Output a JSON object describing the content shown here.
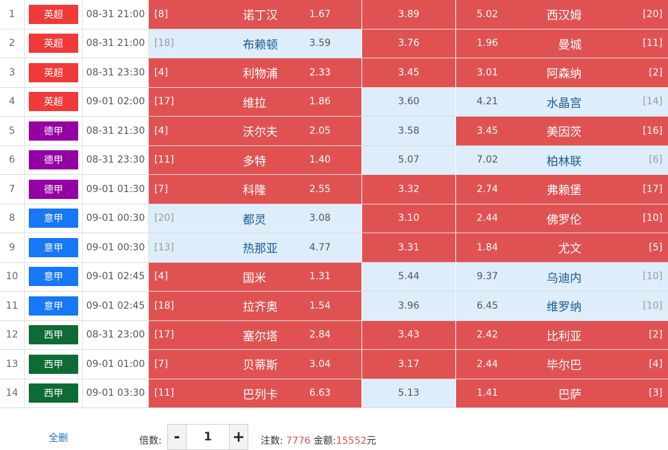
{
  "colors": {
    "selected": "#e05252",
    "unselected": "#ddeefa"
  },
  "leagues": {
    "英超": "#f03a3a",
    "德甲": "#9400a3",
    "意甲": "#1677f7",
    "西甲": "#0f6b35"
  },
  "matches": [
    {
      "index": "1",
      "league": "英超",
      "time": "08-31 21:00",
      "home_rank": "[8]",
      "home": "诺丁汉",
      "home_odd": "1.67",
      "draw_odd": "3.89",
      "away_odd": "5.02",
      "away": "西汉姆",
      "away_rank": "[20]",
      "sel": [
        true,
        true,
        true
      ]
    },
    {
      "index": "2",
      "league": "英超",
      "time": "08-31 21:00",
      "home_rank": "[18]",
      "home": "布赖顿",
      "home_odd": "3.59",
      "draw_odd": "3.76",
      "away_odd": "1.96",
      "away": "曼城",
      "away_rank": "[11]",
      "sel": [
        false,
        true,
        true
      ]
    },
    {
      "index": "3",
      "league": "英超",
      "time": "08-31 23:30",
      "home_rank": "[4]",
      "home": "利物浦",
      "home_odd": "2.33",
      "draw_odd": "3.45",
      "away_odd": "3.01",
      "away": "阿森纳",
      "away_rank": "[2]",
      "sel": [
        true,
        true,
        true
      ]
    },
    {
      "index": "4",
      "league": "英超",
      "time": "09-01 02:00",
      "home_rank": "[17]",
      "home": "维拉",
      "home_odd": "1.86",
      "draw_odd": "3.60",
      "away_odd": "4.21",
      "away": "水晶宫",
      "away_rank": "[14]",
      "sel": [
        true,
        false,
        false
      ]
    },
    {
      "index": "5",
      "league": "德甲",
      "time": "08-31 21:30",
      "home_rank": "[4]",
      "home": "沃尔夫",
      "home_odd": "2.05",
      "draw_odd": "3.58",
      "away_odd": "3.45",
      "away": "美因茨",
      "away_rank": "[16]",
      "sel": [
        true,
        false,
        true
      ]
    },
    {
      "index": "6",
      "league": "德甲",
      "time": "08-31 23:30",
      "home_rank": "[11]",
      "home": "多特",
      "home_odd": "1.40",
      "draw_odd": "5.07",
      "away_odd": "7.02",
      "away": "柏林联",
      "away_rank": "[6]",
      "sel": [
        true,
        false,
        false
      ]
    },
    {
      "index": "7",
      "league": "德甲",
      "time": "09-01 01:30",
      "home_rank": "[7]",
      "home": "科隆",
      "home_odd": "2.55",
      "draw_odd": "3.32",
      "away_odd": "2.74",
      "away": "弗赖堡",
      "away_rank": "[17]",
      "sel": [
        true,
        true,
        true
      ]
    },
    {
      "index": "8",
      "league": "意甲",
      "time": "09-01 00:30",
      "home_rank": "[20]",
      "home": "都灵",
      "home_odd": "3.08",
      "draw_odd": "3.10",
      "away_odd": "2.44",
      "away": "佛罗伦",
      "away_rank": "[10]",
      "sel": [
        false,
        true,
        true
      ]
    },
    {
      "index": "9",
      "league": "意甲",
      "time": "09-01 00:30",
      "home_rank": "[13]",
      "home": "热那亚",
      "home_odd": "4.77",
      "draw_odd": "3.31",
      "away_odd": "1.84",
      "away": "尤文",
      "away_rank": "[5]",
      "sel": [
        false,
        true,
        true
      ]
    },
    {
      "index": "10",
      "league": "意甲",
      "time": "09-01 02:45",
      "home_rank": "[4]",
      "home": "国米",
      "home_odd": "1.31",
      "draw_odd": "5.44",
      "away_odd": "9.37",
      "away": "乌迪内",
      "away_rank": "[10]",
      "sel": [
        true,
        false,
        false
      ]
    },
    {
      "index": "11",
      "league": "意甲",
      "time": "09-01 02:45",
      "home_rank": "[18]",
      "home": "拉齐奥",
      "home_odd": "1.54",
      "draw_odd": "3.96",
      "away_odd": "6.45",
      "away": "维罗纳",
      "away_rank": "[10]",
      "sel": [
        true,
        false,
        false
      ]
    },
    {
      "index": "12",
      "league": "西甲",
      "time": "08-31 23:00",
      "home_rank": "[17]",
      "home": "塞尔塔",
      "home_odd": "2.84",
      "draw_odd": "3.43",
      "away_odd": "2.42",
      "away": "比利亚",
      "away_rank": "[2]",
      "sel": [
        true,
        true,
        true
      ]
    },
    {
      "index": "13",
      "league": "西甲",
      "time": "09-01 01:00",
      "home_rank": "[7]",
      "home": "贝蒂斯",
      "home_odd": "3.04",
      "draw_odd": "3.17",
      "away_odd": "2.44",
      "away": "毕尔巴",
      "away_rank": "[4]",
      "sel": [
        true,
        true,
        true
      ]
    },
    {
      "index": "14",
      "league": "西甲",
      "time": "09-01 03:30",
      "home_rank": "[11]",
      "home": "巴列卡",
      "home_odd": "6.63",
      "draw_odd": "5.13",
      "away_odd": "1.41",
      "away": "巴萨",
      "away_rank": "[3]",
      "sel": [
        true,
        false,
        true
      ]
    }
  ],
  "footer": {
    "select_all": "全删",
    "multiplier_label": "倍数:",
    "minus": "-",
    "multiplier_value": "1",
    "plus": "+",
    "bets_label": "注数:",
    "bets_value": "7776",
    "amount_label": "金额:",
    "amount_value": "15552",
    "currency": "元"
  }
}
